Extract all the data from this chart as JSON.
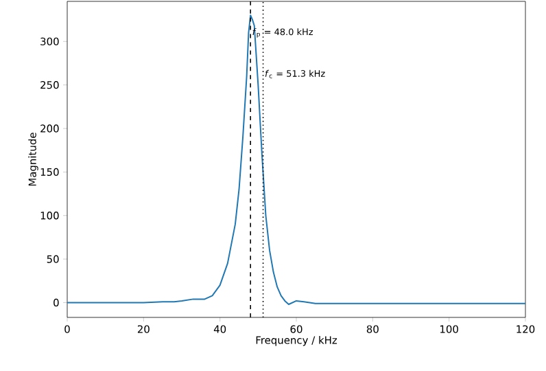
{
  "chart_data": {
    "type": "line",
    "xlabel": "Frequency / kHz",
    "ylabel": "Magnitude",
    "x": [
      0,
      5,
      10,
      15,
      20,
      25,
      28,
      30,
      33,
      36,
      38,
      40,
      42,
      44,
      45,
      46,
      47,
      47.5,
      48,
      48.5,
      49,
      50,
      51,
      52,
      53,
      54,
      55,
      56,
      57,
      58,
      60,
      62,
      65,
      70,
      80,
      100,
      120
    ],
    "series": [
      {
        "color": "#1f77b4",
        "values": [
          0,
          0,
          0,
          0,
          0,
          1,
          1,
          2,
          4,
          4,
          8,
          20,
          45,
          90,
          130,
          190,
          260,
          310,
          330,
          325,
          318,
          250,
          170,
          100,
          60,
          35,
          18,
          8,
          2,
          -2,
          2,
          1,
          -1,
          -1,
          -1,
          -1,
          -1
        ]
      }
    ],
    "xlim": [
      0,
      120
    ],
    "ylim": [
      -17,
      346
    ],
    "xticks": [
      0,
      20,
      40,
      60,
      80,
      100,
      120
    ],
    "yticks": [
      0,
      50,
      100,
      150,
      200,
      250,
      300
    ],
    "ref_lines": [
      {
        "axis": "x",
        "value": 48.0,
        "label": "*f*$_{p}$ = 48.0 kHz",
        "color": "#000000",
        "line_style": "dashed"
      },
      {
        "axis": "x",
        "value": 51.3,
        "label": "*f*$_{c}$ = 51.3 kHz",
        "color": "#000000",
        "line_style": "dotted"
      }
    ],
    "grid": false
  }
}
